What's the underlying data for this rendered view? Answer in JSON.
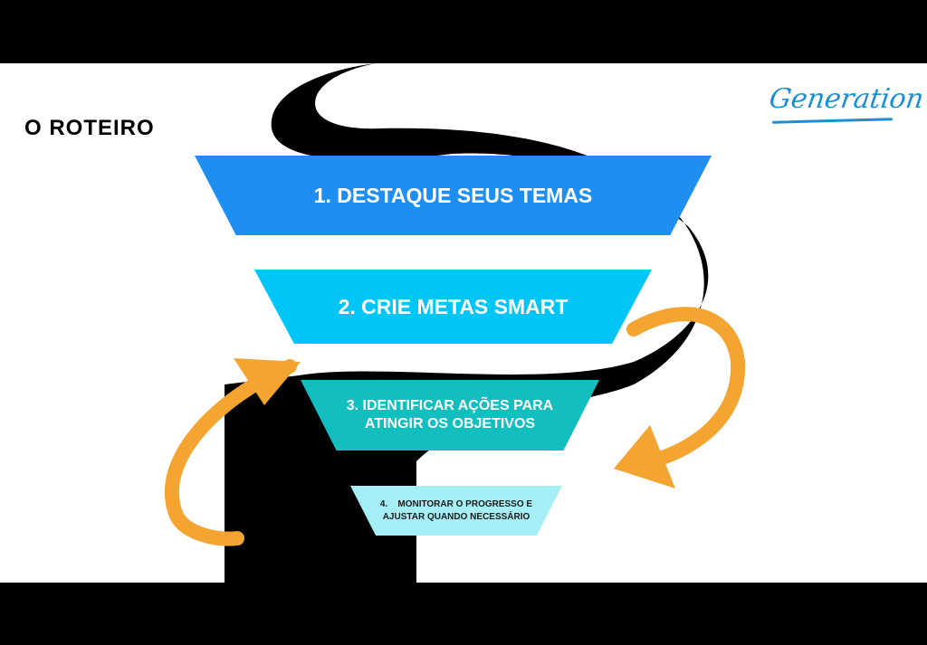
{
  "slide": {
    "title": "O ROTEIRO",
    "logo_text": "Generation"
  },
  "steps": [
    {
      "label": "1. DESTAQUE SEUS TEMAS",
      "color": "#1e8ff0"
    },
    {
      "label": "2. CRIE METAS SMART",
      "color": "#00c6f8"
    },
    {
      "label": "3. IDENTIFICAR AÇÕES PARA ATINGIR OS OBJETIVOS",
      "color": "#12bebe"
    },
    {
      "label": "4.    MONITORAR O PROGRESSO E AJUSTAR QUANDO NECESSÁRIO",
      "color": "#a6eef6"
    }
  ],
  "colors": {
    "road": "#000000",
    "cycle_arrows": "#f4a430",
    "logo": "#1a8fd6"
  },
  "icons": [
    "winding-road-graphic",
    "cycle-arrow-icon"
  ]
}
